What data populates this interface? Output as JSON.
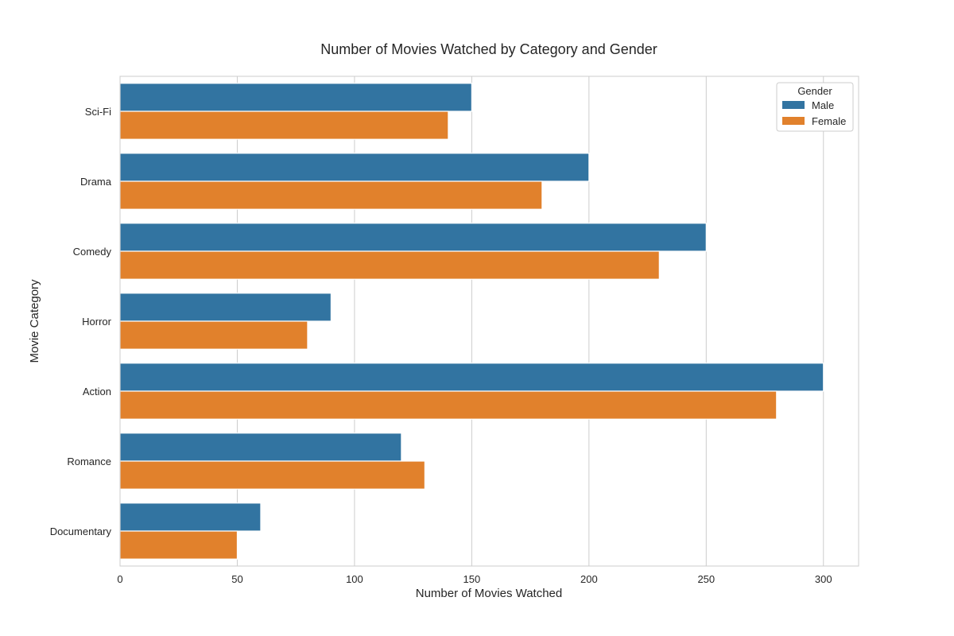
{
  "chart_data": {
    "type": "bar",
    "orientation": "horizontal",
    "title": "Number of Movies Watched by Category and Gender",
    "xlabel": "Number of Movies Watched",
    "ylabel": "Movie Category",
    "xlim": [
      0,
      315
    ],
    "xticks": [
      0,
      50,
      100,
      150,
      200,
      250,
      300
    ],
    "grid": true,
    "categories": [
      "Sci-Fi",
      "Drama",
      "Comedy",
      "Horror",
      "Action",
      "Romance",
      "Documentary"
    ],
    "series": [
      {
        "name": "Male",
        "color": "#3274a1",
        "values": [
          150,
          200,
          250,
          90,
          300,
          120,
          60
        ]
      },
      {
        "name": "Female",
        "color": "#e1812c",
        "values": [
          140,
          180,
          230,
          80,
          280,
          130,
          50
        ]
      }
    ],
    "legend": {
      "title": "Gender",
      "placement": "top-right"
    }
  }
}
